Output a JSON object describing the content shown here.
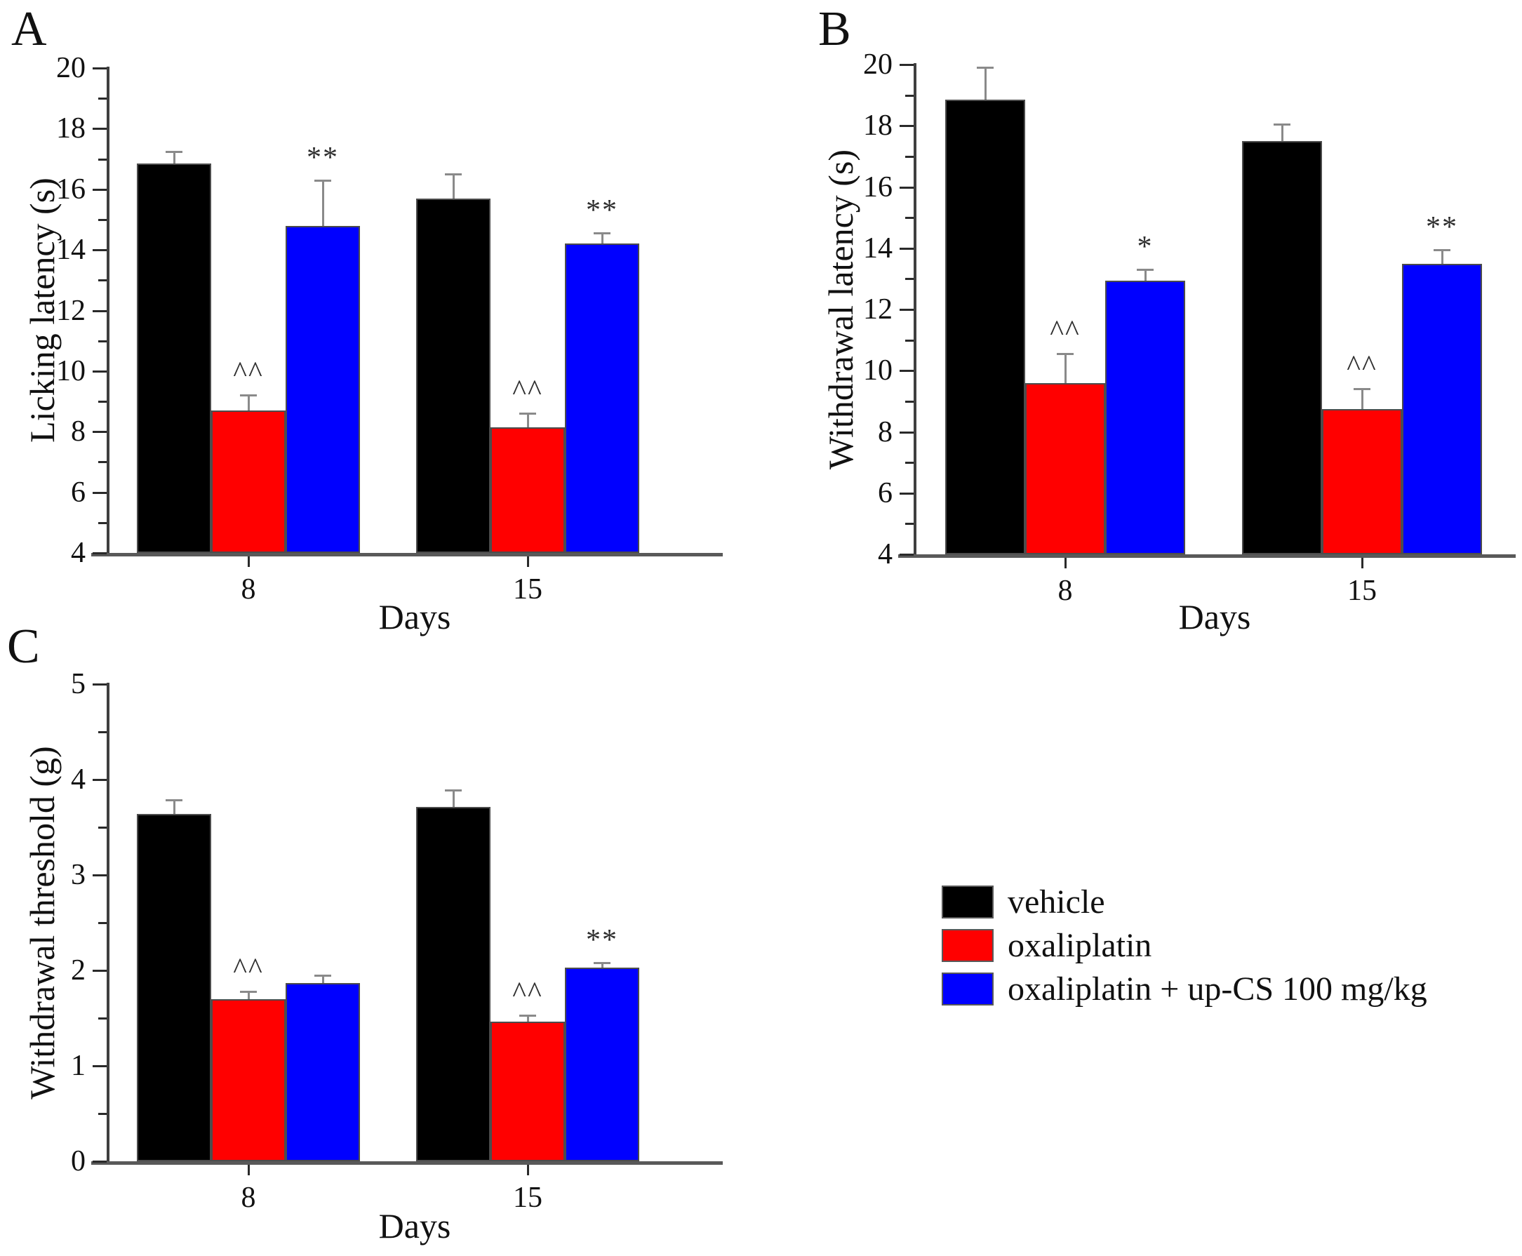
{
  "legend": {
    "entries": [
      {
        "label": "vehicle",
        "color": "#000000"
      },
      {
        "label": "oxaliplatin",
        "color": "#ff0000"
      },
      {
        "label": "oxaliplatin + up-CS 100 mg/kg",
        "color": "#0000ff"
      }
    ]
  },
  "chart_data": [
    {
      "type": "bar",
      "panel": "A",
      "ylabel": "Licking latency (s)",
      "xlabel": "Days",
      "categories": [
        "8",
        "15"
      ],
      "ylim": [
        4,
        20
      ],
      "yticks": [
        4,
        6,
        8,
        10,
        12,
        14,
        16,
        18,
        20
      ],
      "yminor_step": 1,
      "grid": false,
      "legend_position": "none",
      "series": [
        {
          "name": "vehicle",
          "color": "#000000",
          "values": [
            16.85,
            15.7
          ],
          "errors": [
            0.4,
            0.8
          ],
          "markers": [
            "",
            ""
          ]
        },
        {
          "name": "oxaliplatin",
          "color": "#ff0000",
          "values": [
            8.7,
            8.15
          ],
          "errors": [
            0.5,
            0.45
          ],
          "markers": [
            "^^",
            "^^"
          ]
        },
        {
          "name": "oxaliplatin + up-CS 100 mg/kg",
          "color": "#0000ff",
          "values": [
            14.8,
            14.2
          ],
          "errors": [
            1.5,
            0.35
          ],
          "markers": [
            "**",
            "**"
          ]
        }
      ]
    },
    {
      "type": "bar",
      "panel": "B",
      "ylabel": "Withdrawal latency (s)",
      "xlabel": "Days",
      "categories": [
        "8",
        "15"
      ],
      "ylim": [
        4,
        20
      ],
      "yticks": [
        4,
        6,
        8,
        10,
        12,
        14,
        16,
        18,
        20
      ],
      "yminor_step": 1,
      "grid": false,
      "legend_position": "none",
      "series": [
        {
          "name": "vehicle",
          "color": "#000000",
          "values": [
            18.85,
            17.5
          ],
          "errors": [
            1.05,
            0.55
          ],
          "markers": [
            "",
            ""
          ]
        },
        {
          "name": "oxaliplatin",
          "color": "#ff0000",
          "values": [
            9.6,
            8.75
          ],
          "errors": [
            0.95,
            0.65
          ],
          "markers": [
            "^^",
            "^^"
          ]
        },
        {
          "name": "oxaliplatin + up-CS 100 mg/kg",
          "color": "#0000ff",
          "values": [
            12.95,
            13.5
          ],
          "errors": [
            0.35,
            0.45
          ],
          "markers": [
            "*",
            "**"
          ]
        }
      ]
    },
    {
      "type": "bar",
      "panel": "C",
      "ylabel": "Withdrawal threshold (g)",
      "xlabel": "Days",
      "categories": [
        "8",
        "15"
      ],
      "ylim": [
        0,
        5
      ],
      "yticks": [
        0,
        1,
        2,
        3,
        4,
        5
      ],
      "yminor_step": 0.5,
      "grid": false,
      "legend_position": "figure-lower-right",
      "series": [
        {
          "name": "vehicle",
          "color": "#000000",
          "values": [
            3.64,
            3.71
          ],
          "errors": [
            0.15,
            0.18
          ],
          "markers": [
            "",
            ""
          ]
        },
        {
          "name": "oxaliplatin",
          "color": "#ff0000",
          "values": [
            1.7,
            1.46
          ],
          "errors": [
            0.08,
            0.07
          ],
          "markers": [
            "^^",
            "^^"
          ]
        },
        {
          "name": "oxaliplatin + up-CS 100 mg/kg",
          "color": "#0000ff",
          "values": [
            1.87,
            2.03
          ],
          "errors": [
            0.08,
            0.05
          ],
          "markers": [
            "",
            "**"
          ]
        }
      ]
    }
  ]
}
